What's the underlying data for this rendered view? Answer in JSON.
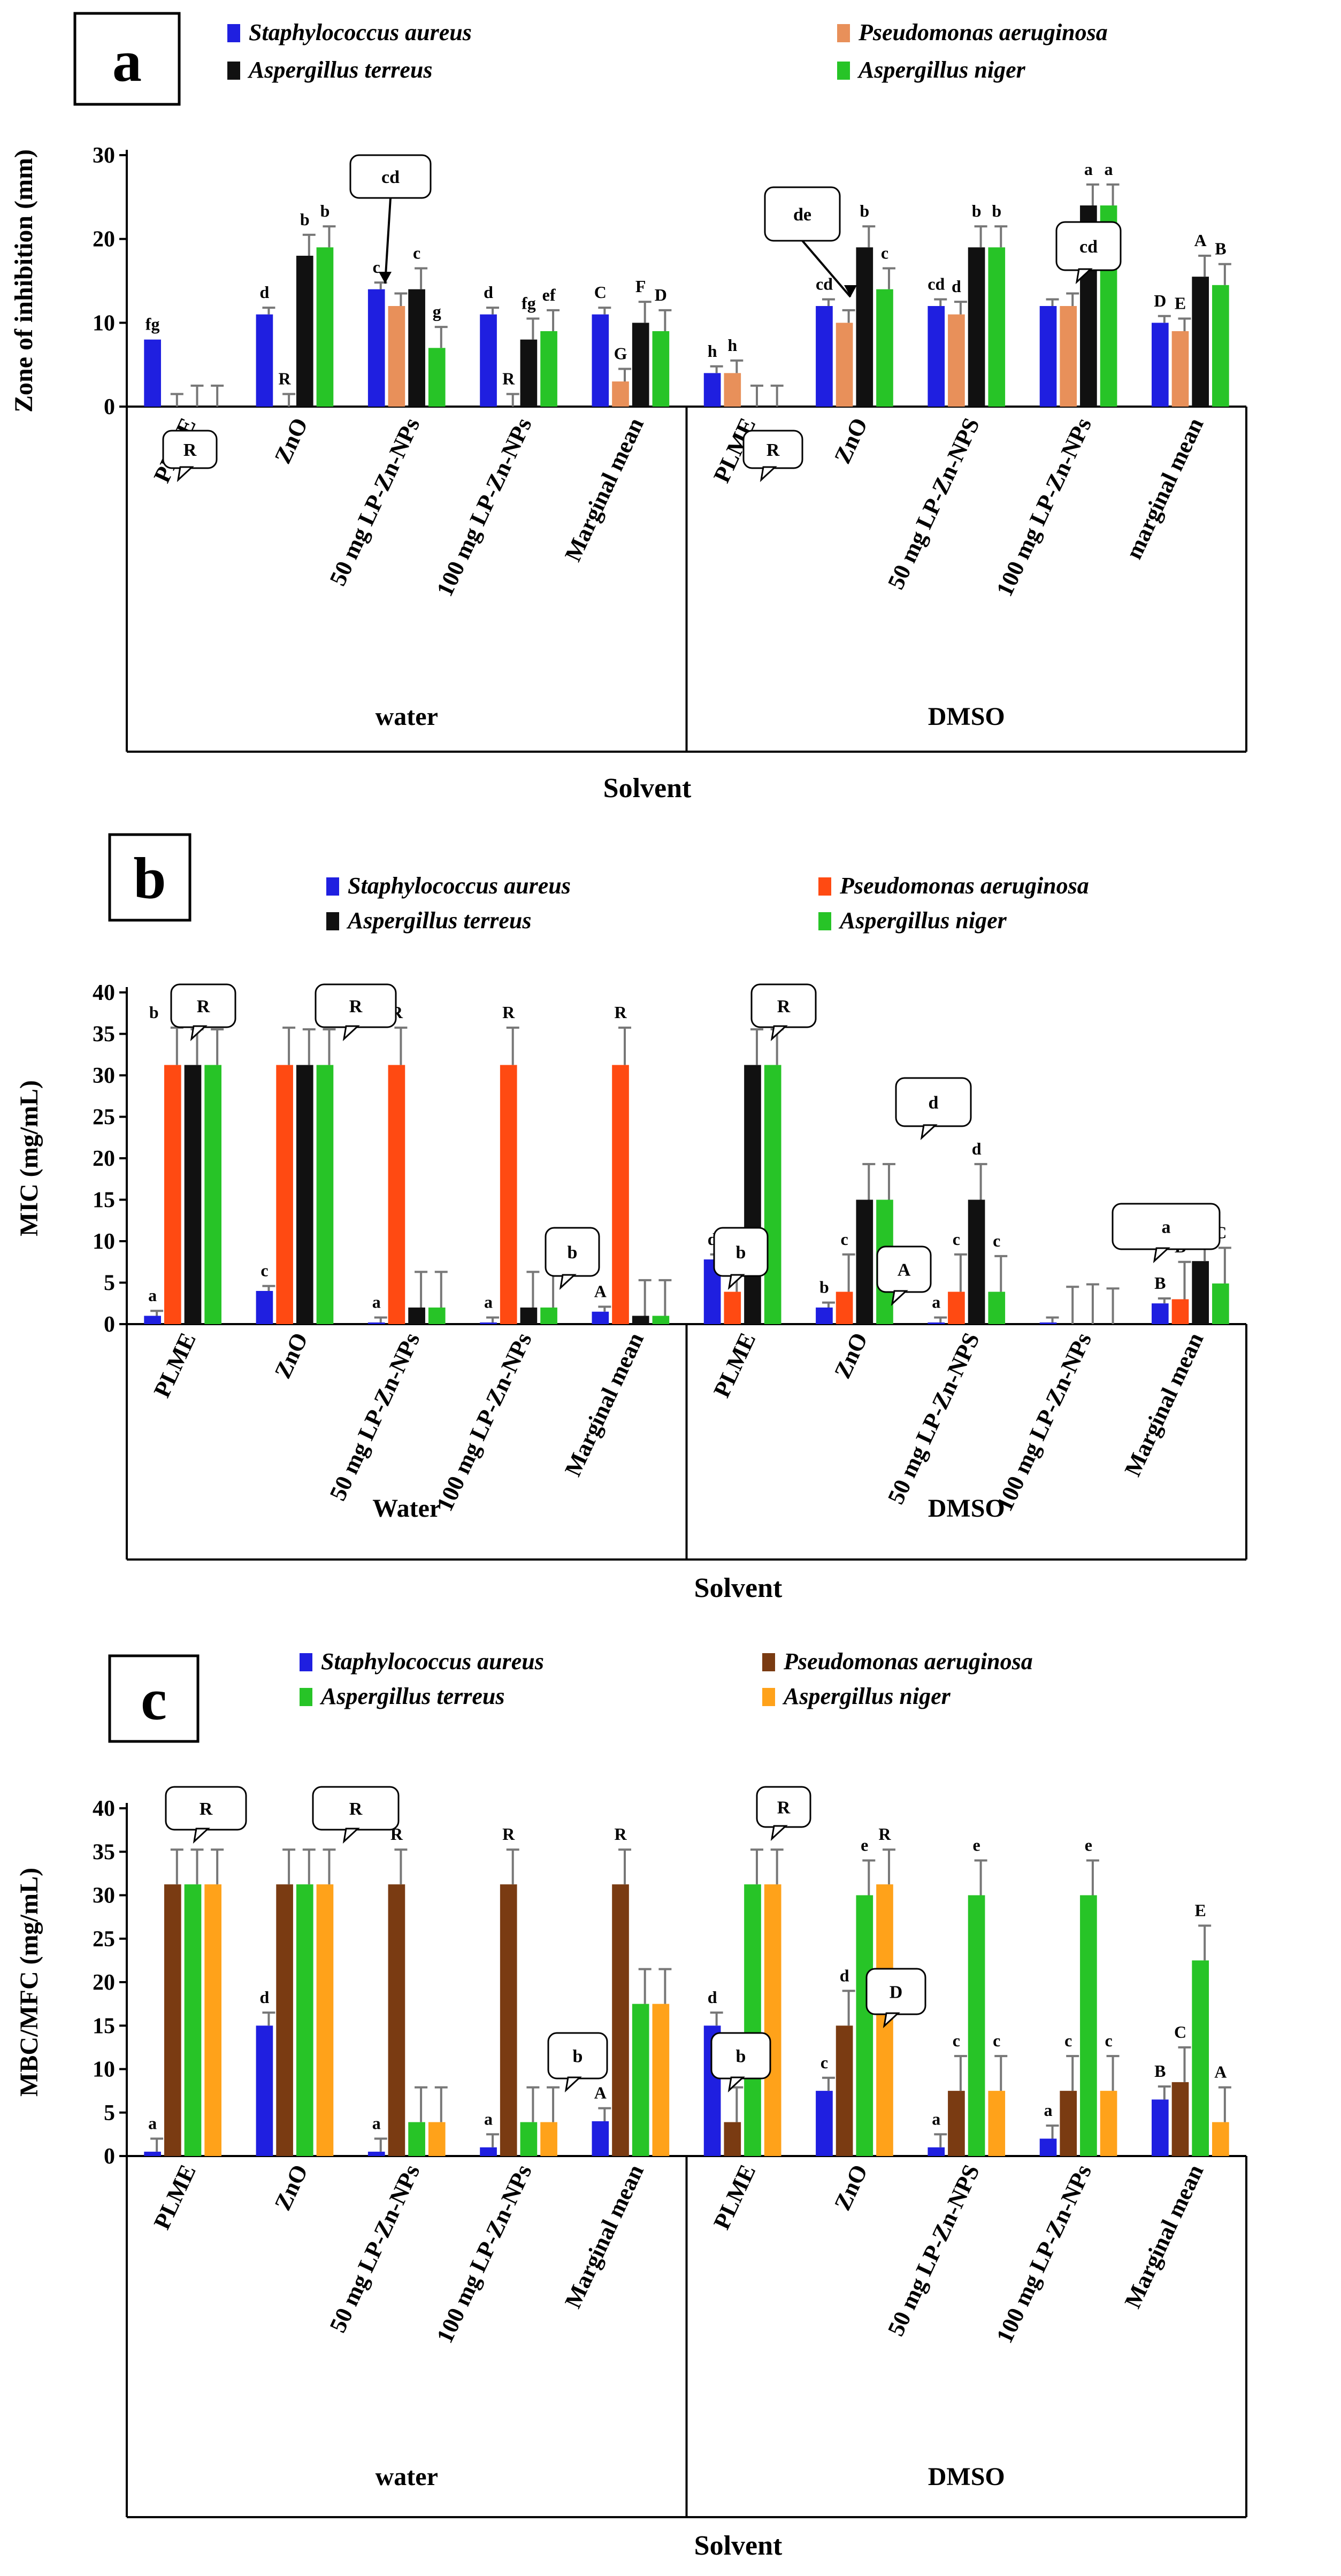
{
  "chart_data": [
    {
      "id": "a",
      "type": "bar",
      "panel_letter": "a",
      "ylabel": "Zone of inhibition (mm)",
      "xlabel": "Solvent",
      "ylim": [
        0,
        30
      ],
      "yticks": [
        0,
        10,
        20,
        30
      ],
      "groups": [
        "water",
        "DMSO"
      ],
      "categories": [
        "PLME",
        "ZnO",
        "50 mg LP-Zn-NPs",
        "100 mg LP-Zn-NPs",
        "Marginal mean",
        "PLME",
        "ZnO",
        "50 mg LP-Zn-NPS",
        "100 mg LP-Zn-NPs",
        "marginal mean"
      ],
      "series": [
        {
          "name": "Staphylococcus aureus",
          "color": "#1f1fe0",
          "values": [
            8,
            11,
            14,
            11,
            11,
            4,
            12,
            12,
            12,
            10
          ],
          "errors": [
            0,
            0.8,
            0.8,
            0.8,
            0.8,
            0.8,
            0.8,
            0.8,
            0.8,
            0.8
          ],
          "letters": [
            "fg",
            "d",
            "c",
            "d",
            "C",
            "h",
            "cd",
            "cd",
            "",
            "D"
          ]
        },
        {
          "name": "Pseudomonas aeruginosa",
          "color": "#e8905a",
          "values": [
            0,
            0,
            12,
            0,
            3,
            4,
            10,
            11,
            12,
            9
          ],
          "errors": [
            1.5,
            1.5,
            1.5,
            1.5,
            1.5,
            1.5,
            1.5,
            1.5,
            1.5,
            1.5
          ],
          "letters": [
            "",
            "R",
            "",
            "R",
            "G",
            "h",
            "",
            "d",
            "",
            "E"
          ]
        },
        {
          "name": "Aspergillus terreus",
          "color": "#111111",
          "values": [
            0,
            18,
            14,
            8,
            10,
            0,
            19,
            19,
            24,
            15.5
          ],
          "errors": [
            2.5,
            2.5,
            2.5,
            2.5,
            2.5,
            2.5,
            2.5,
            2.5,
            2.5,
            2.5
          ],
          "letters": [
            "",
            "b",
            "c",
            "fg",
            "F",
            "",
            "b",
            "b",
            "a",
            "A"
          ]
        },
        {
          "name": "Aspergillus niger",
          "color": "#27c427",
          "values": [
            0,
            19,
            7,
            9,
            9,
            0,
            14,
            19,
            24,
            14.5
          ],
          "errors": [
            2.5,
            2.5,
            2.5,
            2.5,
            2.5,
            2.5,
            2.5,
            2.5,
            2.5,
            2.5
          ],
          "letters": [
            "",
            "b",
            "g",
            "ef",
            "D",
            "",
            "c",
            "b",
            "a",
            "B"
          ]
        }
      ],
      "callouts": [
        "R",
        "cd",
        "de",
        "R",
        "cd"
      ],
      "legend": "top"
    },
    {
      "id": "b",
      "type": "bar",
      "panel_letter": "b",
      "ylabel": "MIC (mg/mL)",
      "xlabel": "Solvent",
      "ylim": [
        0,
        40
      ],
      "yticks": [
        0,
        5,
        10,
        15,
        20,
        25,
        30,
        35,
        40
      ],
      "groups": [
        "Water",
        "DMSO"
      ],
      "categories": [
        "PLME",
        "ZnO",
        "50 mg LP-Zn-NPs",
        "100 mg LP-Zn-NPs",
        "Marginal mean",
        "PLME",
        "ZnO",
        "50 mg LP-Zn-NPS",
        "100 mg LP-Zn-NPs",
        "Marginal mean"
      ],
      "series": [
        {
          "name": "Staphylococcus aureus",
          "color": "#1f1fe0",
          "values": [
            1,
            4,
            0.2,
            0.2,
            1.5,
            7.8,
            2,
            0.2,
            0.2,
            2.5
          ],
          "errors": [
            0.6,
            0.6,
            0.6,
            0.6,
            0.6,
            0.6,
            0.6,
            0.6,
            0.6,
            0.6
          ],
          "letters": [
            "a",
            "c",
            "a",
            "a",
            "A",
            "d",
            "b",
            "a",
            "",
            "B"
          ]
        },
        {
          "name": "Pseudomonas aeruginosa",
          "color": "#ff4a12",
          "values": [
            31.25,
            31.25,
            31.25,
            31.25,
            31.25,
            3.9,
            3.9,
            3.9,
            0,
            3
          ],
          "errors": [
            4.5,
            4.5,
            4.5,
            4.5,
            4.5,
            4.5,
            4.5,
            4.5,
            4.5,
            4.5
          ],
          "letters": [
            "b",
            "",
            "R",
            "R",
            "R",
            "c",
            "c",
            "c",
            "",
            "B"
          ]
        },
        {
          "name": "Aspergillus terreus",
          "color": "#111111",
          "values": [
            31.25,
            31.25,
            2,
            2,
            1,
            31.25,
            15,
            15,
            0,
            7.6
          ],
          "errors": [
            4.3,
            4.3,
            4.3,
            4.3,
            4.3,
            4.3,
            4.3,
            4.3,
            4.8,
            4.3
          ],
          "letters": [
            "",
            "",
            "",
            "",
            "",
            "",
            "",
            "d",
            "",
            "D"
          ]
        },
        {
          "name": "Aspergillus niger",
          "color": "#27c427",
          "values": [
            31.25,
            31.25,
            2,
            2,
            1,
            31.25,
            15,
            3.9,
            0,
            4.9
          ],
          "errors": [
            4.3,
            4.3,
            4.3,
            4.3,
            4.3,
            4.3,
            4.3,
            4.3,
            4.3,
            4.3
          ],
          "letters": [
            "",
            "",
            "",
            "",
            "",
            "",
            "",
            "c",
            "",
            "C"
          ]
        }
      ],
      "callouts": [
        "R",
        "R",
        "b",
        "b",
        "A",
        "R",
        "d",
        "a"
      ],
      "legend": "top"
    },
    {
      "id": "c",
      "type": "bar",
      "panel_letter": "c",
      "ylabel": "MBC/MFC (mg/mL)",
      "xlabel": "Solvent",
      "ylim": [
        0,
        40
      ],
      "yticks": [
        0,
        5,
        10,
        15,
        20,
        25,
        30,
        35,
        40
      ],
      "groups": [
        "water",
        "DMSO"
      ],
      "categories": [
        "PLME",
        "ZnO",
        "50 mg LP-Zn-NPs",
        "100 mg LP-Zn-NPs",
        "Marginal mean",
        "PLME",
        "ZnO",
        "50 mg LP-Zn-NPS",
        "100 mg LP-Zn-NPs",
        "Marginal mean"
      ],
      "series": [
        {
          "name": "Staphylococcus aureus",
          "color": "#1f1fe0",
          "values": [
            0.5,
            15,
            0.5,
            1,
            4,
            15,
            7.5,
            1,
            2,
            6.5
          ],
          "errors": [
            1.5,
            1.5,
            1.5,
            1.5,
            1.5,
            1.5,
            1.5,
            1.5,
            1.5,
            1.5
          ],
          "letters": [
            "a",
            "d",
            "a",
            "a",
            "A",
            "d",
            "c",
            "a",
            "a",
            "B"
          ]
        },
        {
          "name": "Pseudomonas aeruginosa",
          "color": "#7a3b12",
          "values": [
            31.25,
            31.25,
            31.25,
            31.25,
            31.25,
            3.9,
            15,
            7.5,
            7.5,
            8.5
          ],
          "errors": [
            4,
            4,
            4,
            4,
            4,
            4,
            4,
            4,
            4,
            4
          ],
          "letters": [
            "",
            "",
            "R",
            "R",
            "R",
            "b",
            "d",
            "c",
            "c",
            "C"
          ]
        },
        {
          "name": "Aspergillus terreus",
          "color": "#27c427",
          "values": [
            31.25,
            31.25,
            3.9,
            3.9,
            17.5,
            31.25,
            30,
            30,
            30,
            22.5
          ],
          "errors": [
            4,
            4,
            4,
            4,
            4,
            4,
            4,
            4,
            4,
            4
          ],
          "letters": [
            "",
            "",
            "",
            "",
            "",
            "",
            "e",
            "e",
            "e",
            "E"
          ]
        },
        {
          "name": "Aspergillus niger",
          "color": "#ffa21a",
          "values": [
            31.25,
            31.25,
            3.9,
            3.9,
            17.5,
            31.25,
            31.25,
            7.5,
            7.5,
            3.9
          ],
          "errors": [
            4,
            4,
            4,
            4,
            4,
            4,
            4,
            4,
            4,
            4
          ],
          "letters": [
            "",
            "",
            "",
            "",
            "",
            "",
            "R",
            "c",
            "c",
            "A"
          ]
        }
      ],
      "callouts": [
        "R",
        "R",
        "b",
        "b",
        "D",
        "R"
      ],
      "legend": "top"
    }
  ]
}
